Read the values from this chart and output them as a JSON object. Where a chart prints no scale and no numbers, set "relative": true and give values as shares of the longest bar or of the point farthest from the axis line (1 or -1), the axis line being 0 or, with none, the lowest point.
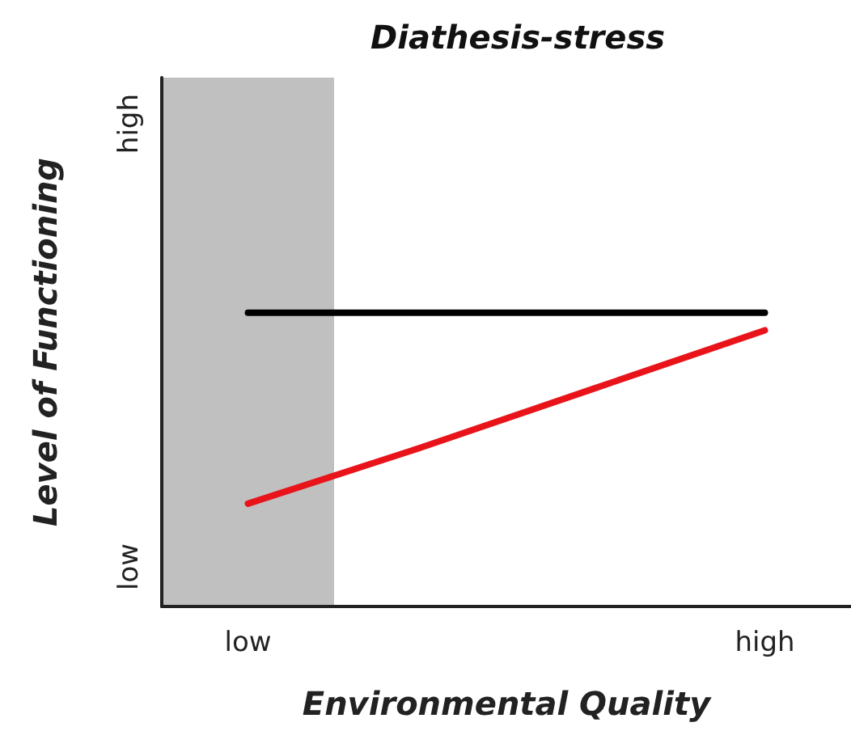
{
  "chart_data": {
    "type": "line",
    "title": "Diathesis-stress",
    "xlabel": "Environmental Quality",
    "ylabel": "Level of Functioning",
    "relative": true,
    "grid": false,
    "categories": [
      "low",
      null,
      null,
      "high"
    ],
    "annotations": [
      "low",
      "high"
    ],
    "bands": [
      {
        "axis": "x",
        "from": "low",
        "to": "low",
        "color": "#c0c0c0"
      }
    ],
    "series": [
      {
        "values": [
          1,
          1,
          1,
          1
        ],
        "color": "#000000"
      },
      {
        "values": [
          0.35,
          0.54,
          0.74,
          0.94
        ],
        "color": "#e8141a"
      }
    ]
  }
}
